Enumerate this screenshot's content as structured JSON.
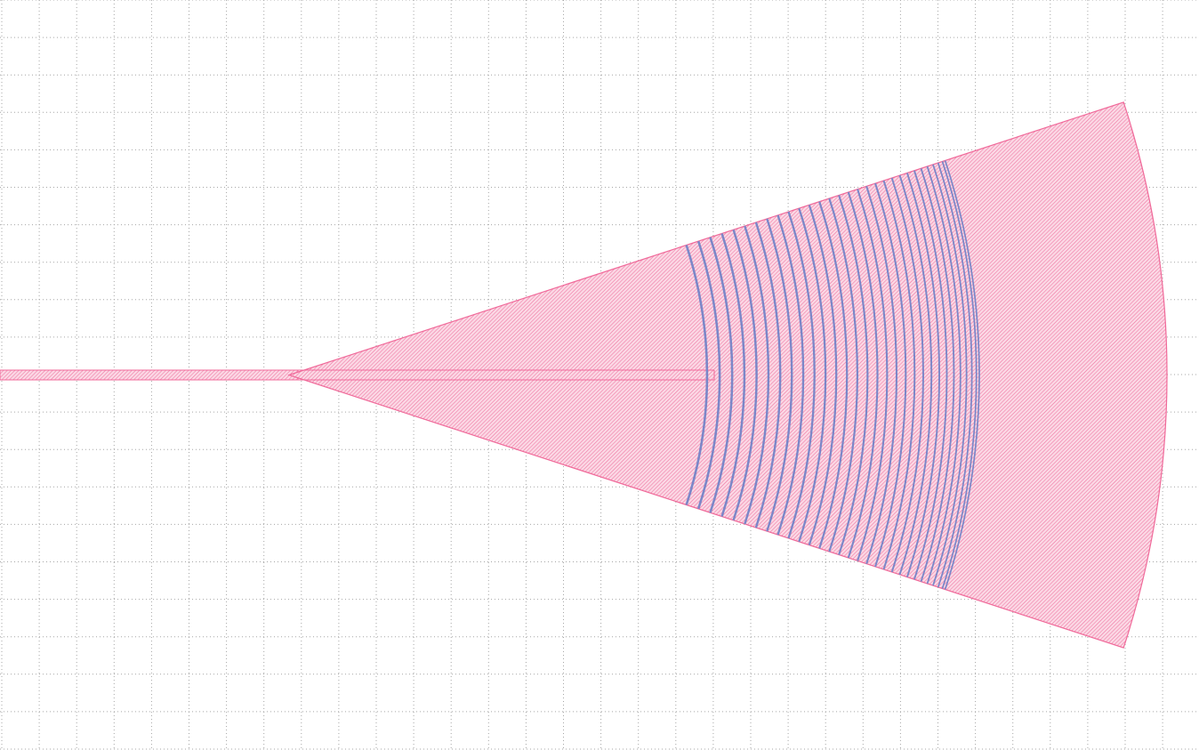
{
  "view": {
    "grid": true,
    "grid_style": "dotted"
  },
  "colors": {
    "background": "#ffffff",
    "grid_dots": "#a6a6a6",
    "taper_layer": "#f06a9a",
    "taper_fill": "#f8c3d6",
    "grating_layer": "#7c87c8"
  },
  "layers": [
    {
      "role": "waveguide-taper",
      "color": "#f06a9a",
      "fill": "diagonal-hatch"
    },
    {
      "role": "grating-teeth",
      "color": "#7c87c8",
      "fill": "diagonal-hatch"
    }
  ],
  "structure": {
    "type": "focusing-grating-coupler",
    "taper_shape": "wedge-sector",
    "grating_shape": "concentric-arcs",
    "grating_tooth_count": 30,
    "input_waveguide": "straight",
    "tooth_spacing": "chirped"
  }
}
